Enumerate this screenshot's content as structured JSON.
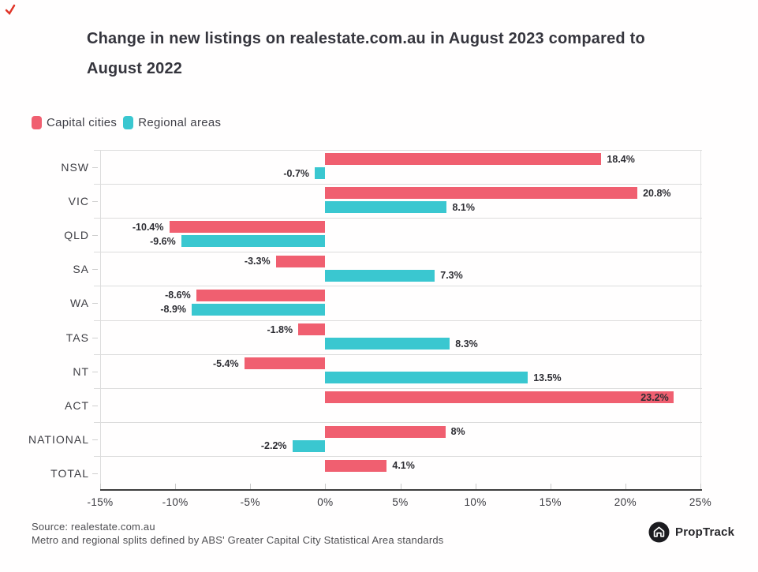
{
  "title": {
    "line1": "Change in new listings on realestate.com.au in August 2023 compared to",
    "line2": "August 2022"
  },
  "legend": [
    {
      "label": "Capital cities",
      "color": "#F05F70"
    },
    {
      "label": "Regional areas",
      "color": "#3AC7D0"
    }
  ],
  "colors": {
    "capital": "#F05F70",
    "regional": "#3AC7D0",
    "axis": "#3d3d3d",
    "grid": "#dcdcdc"
  },
  "chart_data": {
    "type": "bar",
    "orientation": "horizontal",
    "title": "Change in new listings on realestate.com.au in August 2023 compared to August 2022",
    "categories": [
      "NSW",
      "VIC",
      "QLD",
      "SA",
      "WA",
      "TAS",
      "NT",
      "ACT",
      "NATIONAL",
      "TOTAL"
    ],
    "series": [
      {
        "name": "Capital cities",
        "color": "#F05F70",
        "values": [
          18.4,
          20.8,
          -10.4,
          -3.3,
          -8.6,
          -1.8,
          -5.4,
          23.2,
          8,
          4.1
        ],
        "labels": [
          "18.4%",
          "20.8%",
          "-10.4%",
          "-3.3%",
          "-8.6%",
          "-1.8%",
          "-5.4%",
          "23.2%",
          "8%",
          "4.1%"
        ]
      },
      {
        "name": "Regional areas",
        "color": "#3AC7D0",
        "values": [
          -0.7,
          8.1,
          -9.6,
          7.3,
          -8.9,
          8.3,
          13.5,
          null,
          -2.2,
          null
        ],
        "labels": [
          "-0.7%",
          "8.1%",
          "-9.6%",
          "7.3%",
          "-8.9%",
          "8.3%",
          "13.5%",
          null,
          "-2.2%",
          null
        ]
      }
    ],
    "x_ticks": [
      "-15%",
      "-10%",
      "-5%",
      "0%",
      "5%",
      "10%",
      "15%",
      "20%",
      "25%"
    ],
    "xlim": [
      -15,
      25
    ],
    "grid": "row-separators",
    "legend_position": "top-left",
    "inside_labels": [
      "ACT|Capital cities"
    ]
  },
  "footer": {
    "line1": "Source: realestate.com.au",
    "line2": "Metro and regional splits defined by ABS' Greater Capital City Statistical Area standards"
  },
  "logo": {
    "text": "PropTrack"
  }
}
